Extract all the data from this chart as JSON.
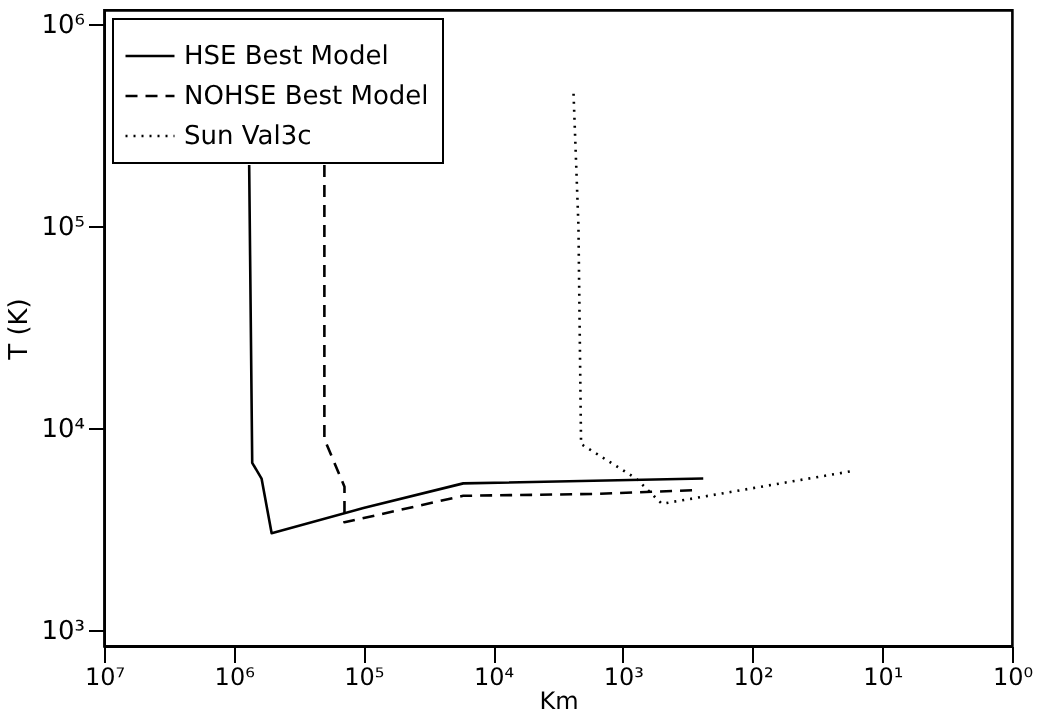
{
  "chart_data": {
    "type": "line",
    "xlabel": "Km",
    "ylabel": "T (K)",
    "log": "xy",
    "grid": false,
    "legend": "top left",
    "xlim": [
      10000000,
      1
    ],
    "ylim": [
      830,
      1170000
    ],
    "xticks": [
      {
        "value": 10000000,
        "label": "10⁷"
      },
      {
        "value": 1000000,
        "label": "10⁶"
      },
      {
        "value": 100000,
        "label": "10⁵"
      },
      {
        "value": 10000,
        "label": "10⁴"
      },
      {
        "value": 1000,
        "label": "10³"
      },
      {
        "value": 100,
        "label": "10²"
      },
      {
        "value": 10,
        "label": "10¹"
      },
      {
        "value": 1,
        "label": "10⁰"
      }
    ],
    "yticks": [
      {
        "value": 1000,
        "label": "10³"
      },
      {
        "value": 10000,
        "label": "10⁴"
      },
      {
        "value": 100000,
        "label": "10⁵"
      },
      {
        "value": 1000000,
        "label": "10⁶"
      }
    ],
    "series": [
      {
        "name": "HSE Best Model",
        "color": "#000000",
        "line_style": "solid",
        "x": [
          760000,
          720000,
          610000,
          510000,
          100000,
          17000,
          240
        ],
        "values": [
          200000,
          6700,
          5600,
          3000,
          4000,
          5300,
          5600
        ]
      },
      {
        "name": "NOHSE Best Model",
        "color": "#000000",
        "line_style": "dashed",
        "x": [
          200000,
          200000,
          140000,
          140000,
          17000,
          1600,
          290
        ],
        "values": [
          200000,
          8800,
          5100,
          3400,
          4600,
          4700,
          4900
        ]
      },
      {
        "name": "Sun Val3c",
        "color": "#000000",
        "line_style": "dotted",
        "x": [
          2400,
          2200,
          2100,
          790,
          500,
          17
        ],
        "values": [
          450000,
          100000,
          8300,
          5600,
          4200,
          6100
        ]
      }
    ]
  }
}
